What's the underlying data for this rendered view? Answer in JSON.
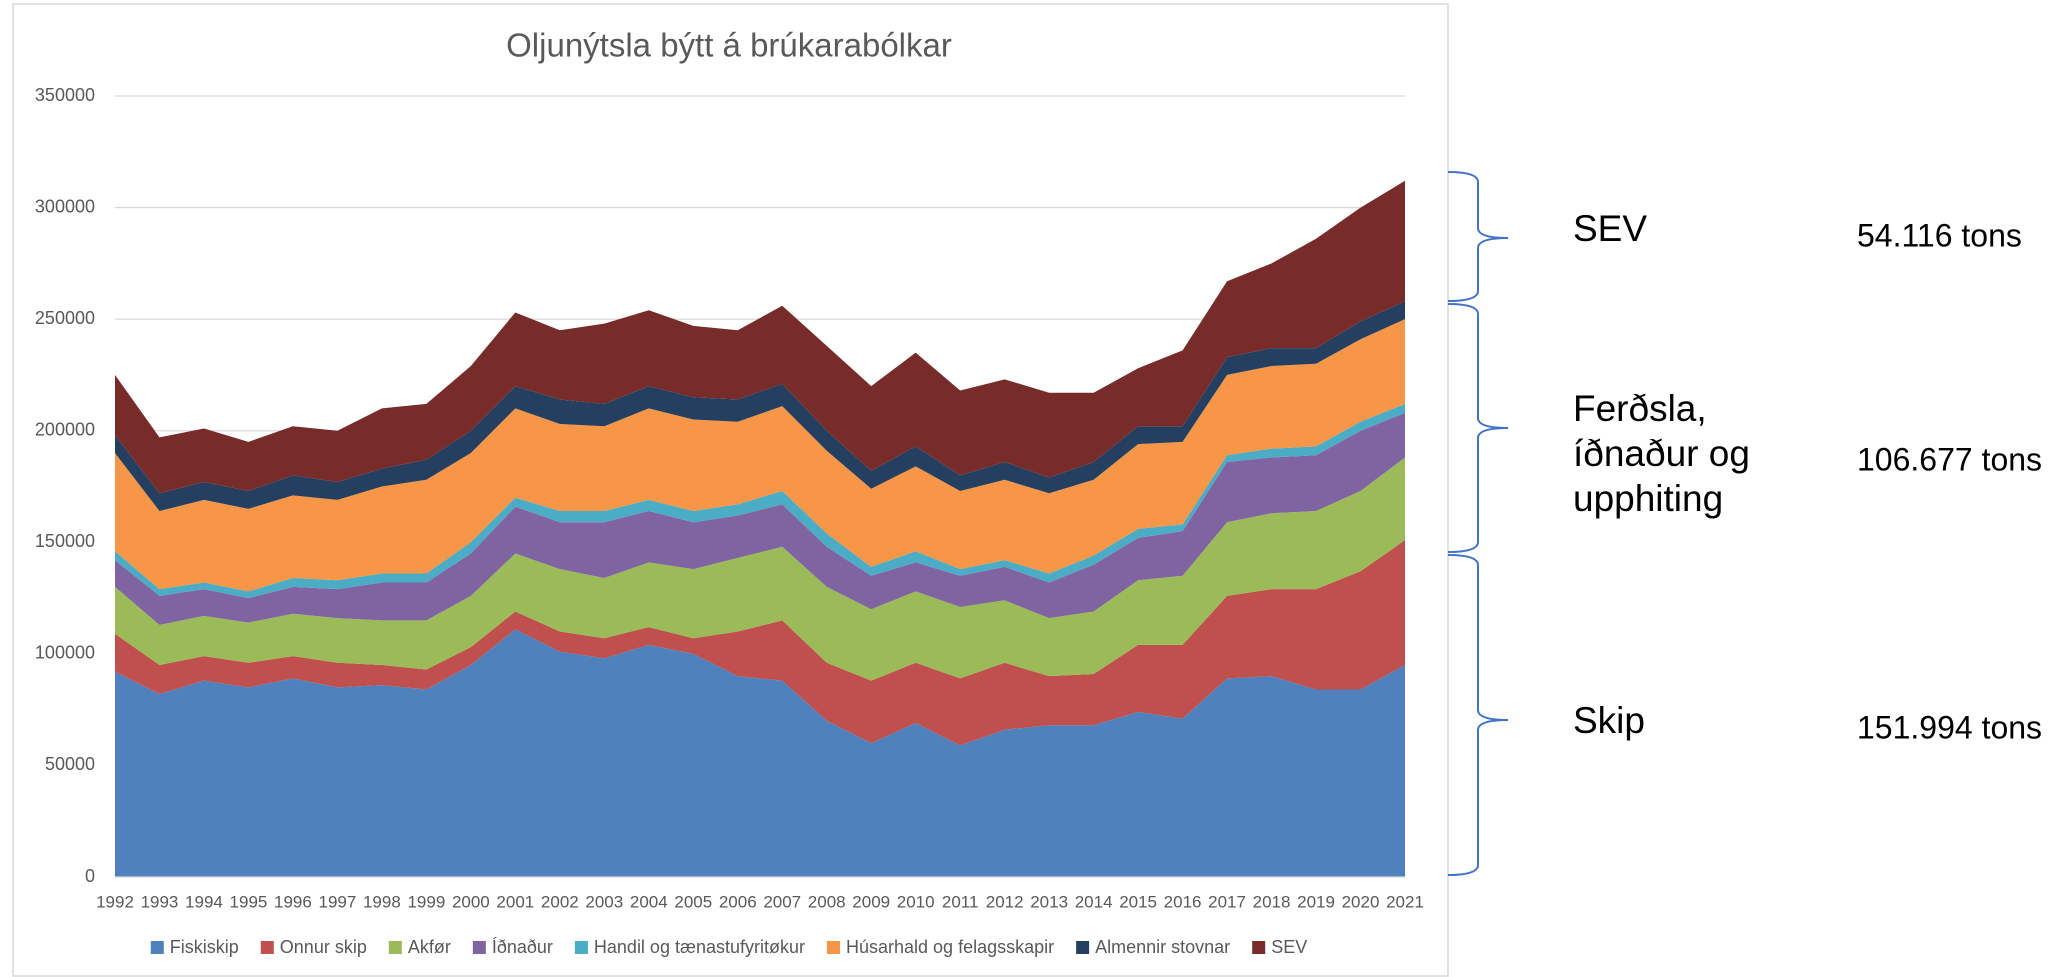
{
  "chart_data": {
    "type": "stacked_area",
    "title": "Oljunýtsla býtt á brúkarabólkar",
    "categories": [
      "1992",
      "1993",
      "1994",
      "1995",
      "1996",
      "1997",
      "1998",
      "1999",
      "2000",
      "2001",
      "2002",
      "2003",
      "2004",
      "2005",
      "2006",
      "2007",
      "2008",
      "2009",
      "2010",
      "2011",
      "2012",
      "2013",
      "2014",
      "2015",
      "2016",
      "2017",
      "2018",
      "2019",
      "2020",
      "2021"
    ],
    "ylim": [
      0,
      350000
    ],
    "yticks": [
      0,
      50000,
      100000,
      150000,
      200000,
      250000,
      300000,
      350000
    ],
    "grid": true,
    "legend": "bottom",
    "series": [
      {
        "name": "Fiskiskip",
        "color": "#4f81bd",
        "values": [
          92000,
          82000,
          88000,
          85000,
          89000,
          85000,
          86000,
          84000,
          95000,
          111000,
          101000,
          98000,
          104000,
          100000,
          90000,
          88000,
          70000,
          60000,
          69000,
          59000,
          66000,
          68000,
          68000,
          74000,
          71000,
          89000,
          90000,
          84000,
          84000,
          95000
        ]
      },
      {
        "name": "Onnur skip",
        "color": "#c0504d",
        "values": [
          17000,
          13000,
          11000,
          11000,
          10000,
          11000,
          9000,
          9000,
          8000,
          8000,
          9000,
          9000,
          8000,
          7000,
          20000,
          27000,
          26000,
          28000,
          27000,
          30000,
          30000,
          22000,
          23000,
          30000,
          33000,
          37000,
          39000,
          45000,
          53000,
          56000
        ]
      },
      {
        "name": "Akfør",
        "color": "#9bbb59",
        "values": [
          21000,
          18000,
          18000,
          18000,
          19000,
          20000,
          20000,
          22000,
          23000,
          26000,
          28000,
          27000,
          29000,
          31000,
          33000,
          33000,
          34000,
          32000,
          32000,
          32000,
          28000,
          26000,
          28000,
          29000,
          31000,
          33000,
          34000,
          35000,
          36000,
          37000
        ]
      },
      {
        "name": "Íðnaður",
        "color": "#8064a2",
        "values": [
          12000,
          13000,
          12000,
          11000,
          12000,
          13000,
          17000,
          17000,
          19000,
          21000,
          21000,
          25000,
          23000,
          21000,
          19000,
          19000,
          18000,
          15000,
          13000,
          14000,
          15000,
          16000,
          21000,
          19000,
          20000,
          27000,
          25000,
          25000,
          27000,
          20000
        ]
      },
      {
        "name": "Handil og tænastufyritøkur",
        "color": "#4bacc6",
        "values": [
          4000,
          3000,
          3000,
          3000,
          4000,
          4000,
          4000,
          4000,
          5000,
          4000,
          5000,
          5000,
          5000,
          5000,
          5000,
          6000,
          6000,
          4000,
          5000,
          3000,
          3000,
          4000,
          4000,
          4000,
          3000,
          3000,
          4000,
          4000,
          4000,
          4000
        ]
      },
      {
        "name": "Húsarhald og felagsskapir",
        "color": "#f79646",
        "values": [
          44000,
          35000,
          37000,
          37000,
          37000,
          36000,
          39000,
          42000,
          40000,
          40000,
          39000,
          38000,
          41000,
          41000,
          37000,
          38000,
          37000,
          35000,
          38000,
          35000,
          36000,
          36000,
          34000,
          38000,
          37000,
          36000,
          37000,
          37000,
          37000,
          38000
        ]
      },
      {
        "name": "Almennir stovnar",
        "color": "#243f60",
        "values": [
          8000,
          8000,
          8000,
          8000,
          9000,
          8000,
          8000,
          9000,
          10000,
          10000,
          11000,
          10000,
          10000,
          10000,
          10000,
          10000,
          9000,
          8000,
          9000,
          7000,
          8000,
          7000,
          8000,
          8000,
          7000,
          8000,
          8000,
          7000,
          8000,
          8000
        ]
      },
      {
        "name": "SEV",
        "color": "#772c2a",
        "values": [
          27000,
          25000,
          24000,
          22000,
          22000,
          23000,
          27000,
          25000,
          29000,
          33000,
          31000,
          36000,
          34000,
          32000,
          31000,
          35000,
          38000,
          38000,
          42000,
          38000,
          37000,
          38000,
          31000,
          26000,
          34000,
          34000,
          38000,
          49000,
          51000,
          54000
        ]
      }
    ]
  },
  "annotations": [
    {
      "group": [
        "SEV"
      ],
      "total": "54.116 tons"
    },
    {
      "group": [
        "Ferðsla,",
        "íðnaður og",
        "upphiting"
      ],
      "total": "106.677 tons"
    },
    {
      "group": [
        "Skip"
      ],
      "total": "151.994 tons"
    }
  ]
}
